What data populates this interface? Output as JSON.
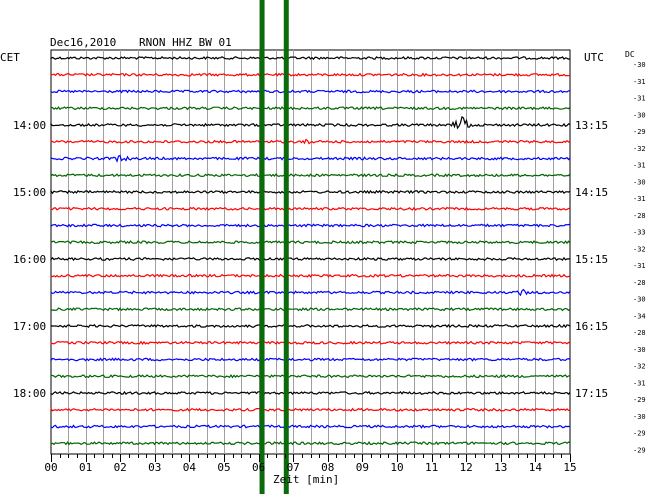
{
  "header": {
    "date": "Dec16,2010",
    "station": "RNON HHZ BW 01",
    "left_tz": "CET",
    "right_tz": "UTC",
    "dc_label": "DC"
  },
  "colors": {
    "trace_cycle": [
      "#000000",
      "#ff0000",
      "#0000ff",
      "#006400"
    ],
    "grid": "#a0a0a0",
    "marker": "#0b6b0b"
  },
  "chart_data": {
    "type": "line",
    "title": "Dec16,2010   RNON HHZ BW 01",
    "xlabel": "Zeit [min]",
    "ylabel": "",
    "xlim": [
      0,
      15
    ],
    "x_ticks": [
      "00",
      "01",
      "02",
      "03",
      "04",
      "05",
      "06",
      "07",
      "08",
      "09",
      "10",
      "11",
      "12",
      "13",
      "14",
      "15"
    ],
    "grid": true,
    "trace_count": 24,
    "left_time_labels": [
      {
        "trace_index": 4,
        "label": "14:00"
      },
      {
        "trace_index": 8,
        "label": "15:00"
      },
      {
        "trace_index": 12,
        "label": "16:00"
      },
      {
        "trace_index": 16,
        "label": "17:00"
      },
      {
        "trace_index": 20,
        "label": "18:00"
      }
    ],
    "right_time_labels": [
      {
        "trace_index": 4,
        "label": "13:15"
      },
      {
        "trace_index": 8,
        "label": "14:15"
      },
      {
        "trace_index": 12,
        "label": "15:15"
      },
      {
        "trace_index": 16,
        "label": "16:15"
      },
      {
        "trace_index": 20,
        "label": "17:15"
      }
    ],
    "dc_offsets": [
      "-30",
      "-31",
      "-31",
      "-30",
      "-29",
      "-32",
      "-31",
      "-30",
      "-31",
      "-28",
      "-33",
      "-32",
      "-31",
      "-28",
      "-30",
      "-34",
      "-28",
      "-30",
      "-32",
      "-31",
      "-29",
      "-30",
      "-29",
      "-29"
    ],
    "vertical_markers_min": [
      6.1,
      6.8
    ],
    "events": [
      {
        "trace_index": 4,
        "minute": 11.9,
        "amplitude": 9
      },
      {
        "trace_index": 5,
        "minute": 7.5,
        "amplitude": 3
      },
      {
        "trace_index": 6,
        "minute": 2.0,
        "amplitude": 3
      },
      {
        "trace_index": 14,
        "minute": 13.7,
        "amplitude": 3
      }
    ]
  }
}
